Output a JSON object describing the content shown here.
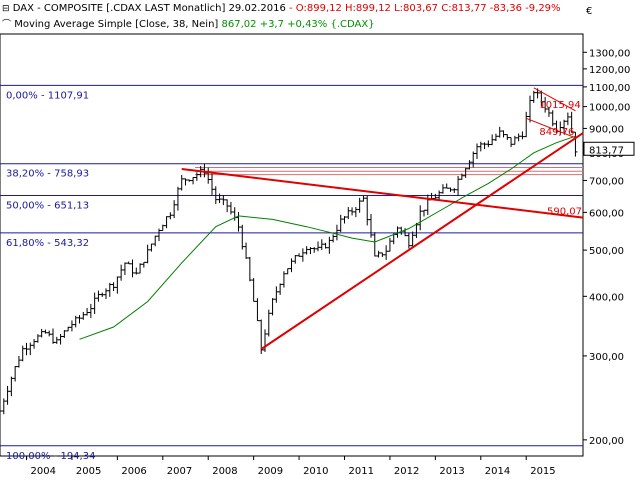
{
  "header": {
    "line1": {
      "name": "DAX - COMPOSITE [.CDAX LAST Monatlich]",
      "date": "29.02.2016",
      "ohl": "- O:899,12 H:899,12 L:803,67",
      "close": "C:813,77",
      "change": "-83,36 -9,29%"
    },
    "line2": {
      "name": "Moving Average Simple [Close, 38, Nein]",
      "value": "867,02",
      "change": "+3,7 +0,43%",
      "symbol": "{.CDAX}"
    }
  },
  "currency_symbol": "€",
  "colors": {
    "bar": "#000000",
    "sma": "#008000",
    "trend": "#e00000",
    "fib": "#1a1aa0",
    "negative": "#e00000",
    "positive": "#009000"
  },
  "chart_data": {
    "type": "ohlc",
    "log_scale": true,
    "ylim": [
      185,
      1420
    ],
    "xlim": [
      "2003-06",
      "2016-04"
    ],
    "x_tick_labels": [
      "2004",
      "2005",
      "2006",
      "2007",
      "2008",
      "2009",
      "2010",
      "2011",
      "2012",
      "2013",
      "2014",
      "2015"
    ],
    "y_tick_labels": [
      "200,00",
      "300,00",
      "400,00",
      "500,00",
      "600,00",
      "700,00",
      "800,00",
      "900,00",
      "1000,00",
      "1100,00",
      "1200,00",
      "1300,00"
    ],
    "y_ticks": [
      200,
      300,
      400,
      500,
      600,
      700,
      800,
      900,
      1000,
      1100,
      1200,
      1300
    ],
    "series_close": [
      {
        "date": "2003-06",
        "close": 230
      },
      {
        "date": "2003-09",
        "close": 270
      },
      {
        "date": "2003-12",
        "close": 310
      },
      {
        "date": "2004-03",
        "close": 325
      },
      {
        "date": "2004-06",
        "close": 335
      },
      {
        "date": "2004-09",
        "close": 320
      },
      {
        "date": "2004-12",
        "close": 345
      },
      {
        "date": "2005-03",
        "close": 360
      },
      {
        "date": "2005-06",
        "close": 380
      },
      {
        "date": "2005-09",
        "close": 410
      },
      {
        "date": "2005-12",
        "close": 425
      },
      {
        "date": "2006-03",
        "close": 470
      },
      {
        "date": "2006-06",
        "close": 445
      },
      {
        "date": "2006-09",
        "close": 495
      },
      {
        "date": "2006-12",
        "close": 555
      },
      {
        "date": "2007-03",
        "close": 600
      },
      {
        "date": "2007-06",
        "close": 700
      },
      {
        "date": "2007-09",
        "close": 715
      },
      {
        "date": "2007-12",
        "close": 735
      },
      {
        "date": "2008-03",
        "close": 640
      },
      {
        "date": "2008-06",
        "close": 620
      },
      {
        "date": "2008-09",
        "close": 560
      },
      {
        "date": "2008-12",
        "close": 430
      },
      {
        "date": "2009-03",
        "close": 310
      },
      {
        "date": "2009-06",
        "close": 390
      },
      {
        "date": "2009-09",
        "close": 450
      },
      {
        "date": "2009-12",
        "close": 480
      },
      {
        "date": "2010-03",
        "close": 510
      },
      {
        "date": "2010-06",
        "close": 500
      },
      {
        "date": "2010-09",
        "close": 520
      },
      {
        "date": "2010-12",
        "close": 575
      },
      {
        "date": "2011-03",
        "close": 605
      },
      {
        "date": "2011-06",
        "close": 640
      },
      {
        "date": "2011-09",
        "close": 480
      },
      {
        "date": "2011-12",
        "close": 500
      },
      {
        "date": "2012-03",
        "close": 560
      },
      {
        "date": "2012-06",
        "close": 520
      },
      {
        "date": "2012-09",
        "close": 600
      },
      {
        "date": "2012-12",
        "close": 640
      },
      {
        "date": "2013-03",
        "close": 665
      },
      {
        "date": "2013-06",
        "close": 680
      },
      {
        "date": "2013-09",
        "close": 750
      },
      {
        "date": "2013-12",
        "close": 825
      },
      {
        "date": "2014-03",
        "close": 840
      },
      {
        "date": "2014-06",
        "close": 880
      },
      {
        "date": "2014-09",
        "close": 840
      },
      {
        "date": "2014-12",
        "close": 880
      },
      {
        "date": "2015-03",
        "close": 1080
      },
      {
        "date": "2015-06",
        "close": 1000
      },
      {
        "date": "2015-09",
        "close": 900
      },
      {
        "date": "2015-12",
        "close": 960
      },
      {
        "date": "2016-02",
        "close": 814
      }
    ],
    "moving_average": {
      "name": "Moving Average Simple [Close, 38, Nein]",
      "points": [
        {
          "date": "2005-03",
          "value": 325
        },
        {
          "date": "2005-12",
          "value": 345
        },
        {
          "date": "2006-09",
          "value": 390
        },
        {
          "date": "2007-06",
          "value": 470
        },
        {
          "date": "2008-03",
          "value": 560
        },
        {
          "date": "2008-09",
          "value": 590
        },
        {
          "date": "2009-06",
          "value": 580
        },
        {
          "date": "2010-03",
          "value": 560
        },
        {
          "date": "2010-09",
          "value": 545
        },
        {
          "date": "2011-03",
          "value": 530
        },
        {
          "date": "2011-09",
          "value": 520
        },
        {
          "date": "2012-06",
          "value": 555
        },
        {
          "date": "2013-03",
          "value": 610
        },
        {
          "date": "2013-09",
          "value": 650
        },
        {
          "date": "2014-03",
          "value": 690
        },
        {
          "date": "2014-09",
          "value": 740
        },
        {
          "date": "2015-03",
          "value": 800
        },
        {
          "date": "2015-09",
          "value": 840
        },
        {
          "date": "2016-02",
          "value": 867
        }
      ]
    },
    "fibonacci_levels": [
      {
        "label": "0,00% - 1107,91",
        "value": 1107.91
      },
      {
        "label": "38,20% - 758,93",
        "value": 758.93
      },
      {
        "label": "50,00% - 651,13",
        "value": 651.13
      },
      {
        "label": "61,80% - 543,32",
        "value": 543.32
      },
      {
        "label": "100,00% - 194,34",
        "value": 194.34
      }
    ],
    "fib_band_extra": [
      745,
      732,
      720
    ],
    "trendlines": [
      {
        "from": {
          "date": "2007-06",
          "value": 740
        },
        "to": {
          "date": "2016-04",
          "value": 585
        },
        "label": "590,07"
      },
      {
        "from": {
          "date": "2009-03",
          "value": 310
        },
        "to": {
          "date": "2016-04",
          "value": 880
        },
        "label": ""
      },
      {
        "from": {
          "date": "2015-03",
          "value": 1095
        },
        "to": {
          "date": "2016-02",
          "value": 980
        },
        "label": "1015,94"
      },
      {
        "from": {
          "date": "2015-01",
          "value": 945
        },
        "to": {
          "date": "2016-02",
          "value": 860
        },
        "label": "849,76"
      }
    ],
    "current_value_label": {
      "value": 813.77,
      "text": "813,77"
    }
  }
}
